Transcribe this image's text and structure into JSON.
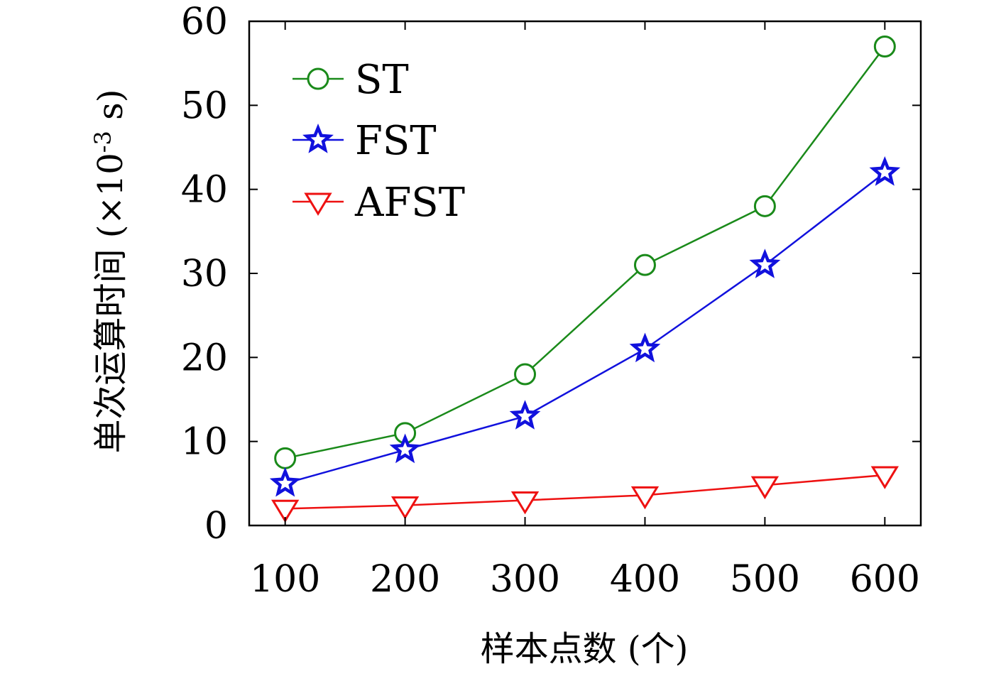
{
  "chart_data": {
    "type": "line",
    "title": "",
    "xlabel": "样本点数 (个)",
    "ylabel_main": "单次运算时间 (×10",
    "ylabel_exp": "-3",
    "ylabel_unit": " s)",
    "x": [
      100,
      200,
      300,
      400,
      500,
      600
    ],
    "x_tick_labels": [
      "100",
      "200",
      "300",
      "400",
      "500",
      "600"
    ],
    "y_ticks": [
      0,
      10,
      20,
      30,
      40,
      50,
      60
    ],
    "y_tick_labels": [
      "0",
      "10",
      "20",
      "30",
      "40",
      "50",
      "60"
    ],
    "xlim": [
      70,
      630
    ],
    "ylim": [
      0,
      60
    ],
    "grid": false,
    "legend_position": "top-left",
    "series": [
      {
        "name": "ST",
        "color": "#1a8a1a",
        "marker": "circle",
        "values": [
          8,
          11,
          18,
          31,
          38,
          57
        ]
      },
      {
        "name": "FST",
        "color": "#1111dd",
        "marker": "star",
        "values": [
          5,
          9,
          13,
          21,
          31,
          42
        ]
      },
      {
        "name": "AFST",
        "color": "#ee1111",
        "marker": "triangle-down",
        "values": [
          2,
          2.4,
          3,
          3.6,
          4.8,
          6
        ]
      }
    ]
  }
}
